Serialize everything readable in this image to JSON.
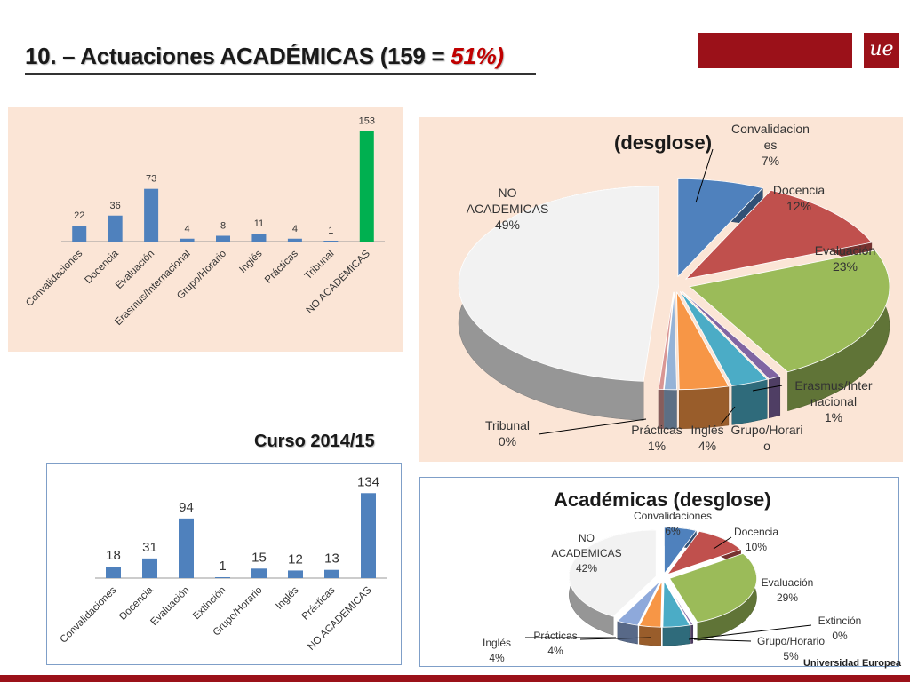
{
  "header": {
    "title_main": "10. – Actuaciones  ACADÉMICAS (159 = ",
    "title_pct": "51%)",
    "brand_logo_text": "ue"
  },
  "course_label": "Curso 2014/15",
  "footer_brand": "Universidad Europea",
  "colors": {
    "brand": "#9b1119",
    "bar": "#4f81bd",
    "highlight": "#00b050",
    "panel_bg": "#fbe5d6"
  },
  "chart_data": [
    {
      "type": "bar",
      "categories": [
        "Convalidaciones",
        "Docencia",
        "Evaluación",
        "Erasmus/Internacional",
        "Grupo/Horario",
        "Inglés",
        "Prácticas",
        "Tribunal",
        "NO ACADEMICAS"
      ],
      "values": [
        22,
        36,
        73,
        4,
        8,
        11,
        4,
        1,
        153
      ],
      "highlight_index": 8,
      "ylim": [
        0,
        160
      ]
    },
    {
      "type": "pie",
      "title": "(desglose)",
      "slices": [
        {
          "label": "Convalidaciones",
          "label_lines": [
            "Convalidacion",
            "es",
            "7%"
          ],
          "value": 7,
          "color": "#4f81bd"
        },
        {
          "label": "Docencia",
          "label_lines": [
            "Docencia",
            "12%"
          ],
          "value": 12,
          "color": "#c0504d"
        },
        {
          "label": "Evaluación",
          "label_lines": [
            "Evaluación",
            "23%"
          ],
          "value": 23,
          "color": "#9bbb59"
        },
        {
          "label": "Erasmus/Internacional",
          "label_lines": [
            "Erasmus/Inter",
            "nacional",
            "1%"
          ],
          "value": 1,
          "color": "#8064a2"
        },
        {
          "label": "Grupo/Horario",
          "label_lines": [
            "Grupo/Horari",
            "o"
          ],
          "value": 3,
          "color": "#4bacc6"
        },
        {
          "label": "Inglés",
          "label_lines": [
            "Inglés",
            "4%"
          ],
          "value": 4,
          "color": "#f79646"
        },
        {
          "label": "Prácticas",
          "label_lines": [
            "Prácticas",
            "1%"
          ],
          "value": 1,
          "color": "#95b3d7"
        },
        {
          "label": "Tribunal",
          "label_lines": [
            "Tribunal",
            "0%"
          ],
          "value": 0.4,
          "color": "#d99694"
        },
        {
          "label": "NO ACADEMICAS",
          "label_lines": [
            "NO",
            "ACADEMICAS",
            "49%"
          ],
          "value": 49,
          "color": "#f2f2f2"
        }
      ]
    },
    {
      "type": "bar",
      "categories": [
        "Convalidaciones",
        "Docencia",
        "Evaluación",
        "Extinción",
        "Grupo/Horario",
        "Inglés",
        "Prácticas",
        "NO ACADEMICAS"
      ],
      "values": [
        18,
        31,
        94,
        1,
        15,
        12,
        13,
        134
      ],
      "ylim": [
        0,
        140
      ]
    },
    {
      "type": "pie",
      "title": "Académicas (desglose)",
      "slices": [
        {
          "label": "Convalidaciones",
          "label_lines": [
            "Convalidaciones",
            "6%"
          ],
          "value": 6,
          "color": "#4f81bd"
        },
        {
          "label": "Docencia",
          "label_lines": [
            "Docencia",
            "10%"
          ],
          "value": 10,
          "color": "#c0504d"
        },
        {
          "label": "Evaluación",
          "label_lines": [
            "Evaluación",
            "29%"
          ],
          "value": 29,
          "color": "#9bbb59"
        },
        {
          "label": "Extinción",
          "label_lines": [
            "Extinción",
            "0%"
          ],
          "value": 0.4,
          "color": "#8064a2"
        },
        {
          "label": "Grupo/Horario",
          "label_lines": [
            "Grupo/Horario",
            "5%"
          ],
          "value": 5,
          "color": "#4bacc6"
        },
        {
          "label": "Prácticas",
          "label_lines": [
            "Prácticas",
            "4%"
          ],
          "value": 4,
          "color": "#f79646"
        },
        {
          "label": "Inglés",
          "label_lines": [
            "Inglés",
            "4%"
          ],
          "value": 4,
          "color": "#8ea9db"
        },
        {
          "label": "NO ACADEMICAS",
          "label_lines": [
            "NO",
            "ACADEMICAS",
            "42%"
          ],
          "value": 42,
          "color": "#f2f2f2"
        }
      ]
    }
  ]
}
